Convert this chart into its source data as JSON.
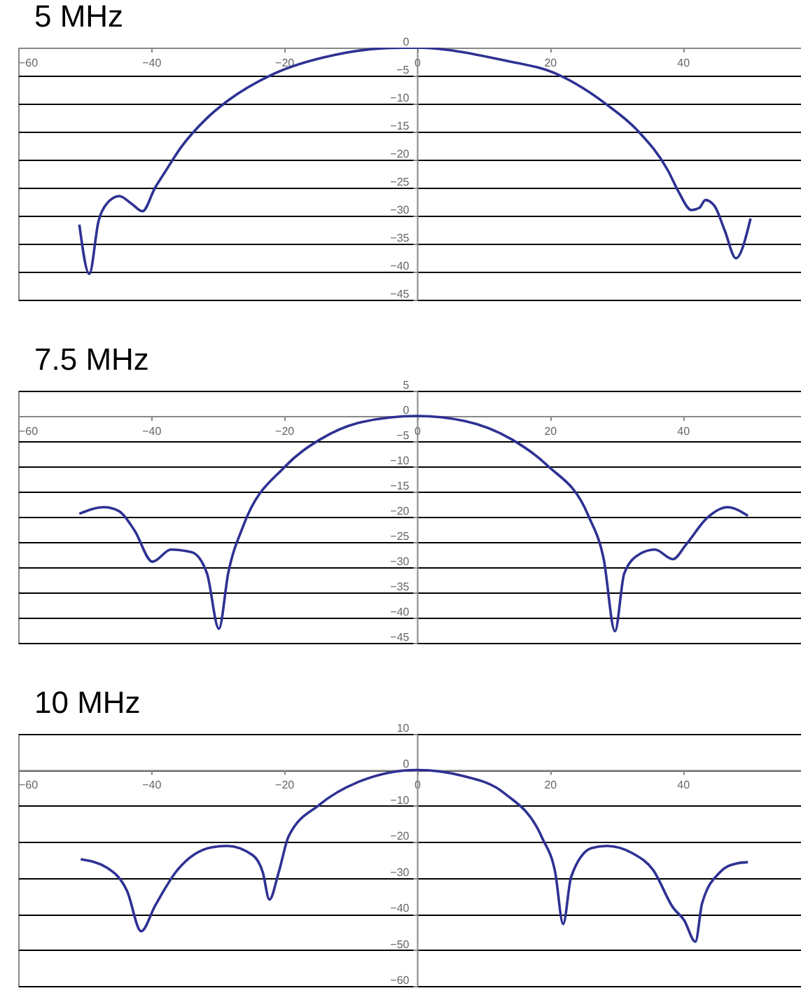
{
  "chart_data": [
    {
      "type": "line",
      "title": "5 MHz",
      "xlim": [
        -60,
        58
      ],
      "xticks": [
        -60,
        -40,
        -20,
        0,
        20,
        40
      ],
      "ylim": [
        -45,
        0
      ],
      "yticks": [
        0,
        -5,
        -10,
        -15,
        -20,
        -25,
        -30,
        -35,
        -40,
        -45
      ],
      "grid": "y",
      "series": [
        {
          "color": "#2e3192",
          "x": [
            -50.8,
            -49.3,
            -47.9,
            -46.7,
            -44.8,
            -42.9,
            -41.3,
            -39.4,
            -37.8,
            -35.5,
            -31.7,
            -28.6,
            -21.6,
            -12.4,
            -4.6,
            0,
            4.6,
            12.4,
            21.2,
            28.6,
            33.2,
            37.8,
            39.4,
            41.3,
            42.5,
            43.4,
            44.8,
            46.3,
            48,
            50.2
          ],
          "values": [
            -31.6,
            -40.4,
            -30.9,
            -27.9,
            -26.5,
            -27.9,
            -29.2,
            -25,
            -22,
            -17.8,
            -12.7,
            -9.6,
            -4.7,
            -1.3,
            -0.1,
            0,
            -0.4,
            -2.1,
            -4.8,
            -10.2,
            -14.8,
            -22,
            -25.8,
            -29,
            -28.6,
            -27.2,
            -28.3,
            -32.6,
            -37.6,
            -30.5
          ]
        }
      ]
    },
    {
      "type": "line",
      "title": "7.5 MHz",
      "xlim": [
        -60,
        58
      ],
      "xticks": [
        -60,
        -40,
        -20,
        0,
        20,
        40
      ],
      "ylim": [
        -45,
        5
      ],
      "yticks": [
        5,
        0,
        -5,
        -10,
        -15,
        -20,
        -25,
        -30,
        -35,
        -40,
        -45
      ],
      "grid": "y",
      "series": [
        {
          "color": "#2e3192",
          "x": [
            -50.8,
            -47.1,
            -44.8,
            -42.5,
            -39.8,
            -37,
            -33.9,
            -31.6,
            -29.8,
            -28.4,
            -26.1,
            -19.9,
            -14.5,
            -8.3,
            0,
            7.2,
            14.2,
            19.6,
            25.8,
            28.1,
            29.8,
            31.2,
            33.5,
            35.8,
            38.5,
            40.5,
            43.6,
            46.7,
            49.8
          ],
          "values": [
            -19.4,
            -18.1,
            -18.9,
            -22.7,
            -28.9,
            -26.5,
            -27,
            -31.2,
            -42.2,
            -31.2,
            -21.7,
            -10.1,
            -4.6,
            -1.2,
            0,
            -1,
            -4.6,
            -9.8,
            -19.8,
            -28.4,
            -42.7,
            -31.2,
            -27.4,
            -26.5,
            -28.4,
            -25.5,
            -20.3,
            -18.1,
            -19.8
          ]
        }
      ]
    },
    {
      "type": "line",
      "title": "10 MHz",
      "xlim": [
        -60,
        58
      ],
      "xticks": [
        -60,
        -40,
        -20,
        0,
        20,
        40
      ],
      "ylim": [
        -60,
        10
      ],
      "yticks": [
        10,
        0,
        -10,
        -20,
        -30,
        -40,
        -50,
        -60
      ],
      "grid": "y",
      "series": [
        {
          "color": "#2e3192",
          "x": [
            -50.6,
            -46.7,
            -43.6,
            -41.5,
            -39.4,
            -36.3,
            -30.9,
            -28.6,
            -24.7,
            -23.2,
            -22.2,
            -20.8,
            -19.3,
            -14.7,
            -8.5,
            0,
            7,
            13.1,
            18.9,
            20.8,
            22,
            23.2,
            26.3,
            28.6,
            32.4,
            35.5,
            38.6,
            40.2,
            41.9,
            42.9,
            45.6,
            48,
            49.8
          ],
          "values": [
            -24.8,
            -27.1,
            -33.7,
            -44.8,
            -37.7,
            -28.4,
            -21.5,
            -21.1,
            -23.7,
            -28.4,
            -36,
            -28.4,
            -18.4,
            -9.7,
            -3.1,
            0,
            -1.7,
            -6.4,
            -19.1,
            -28.4,
            -42.8,
            -29.7,
            -21.7,
            -21.1,
            -23.1,
            -27.7,
            -38.4,
            -41.7,
            -47.7,
            -37.1,
            -28.4,
            -26,
            -25.6
          ]
        }
      ]
    }
  ]
}
